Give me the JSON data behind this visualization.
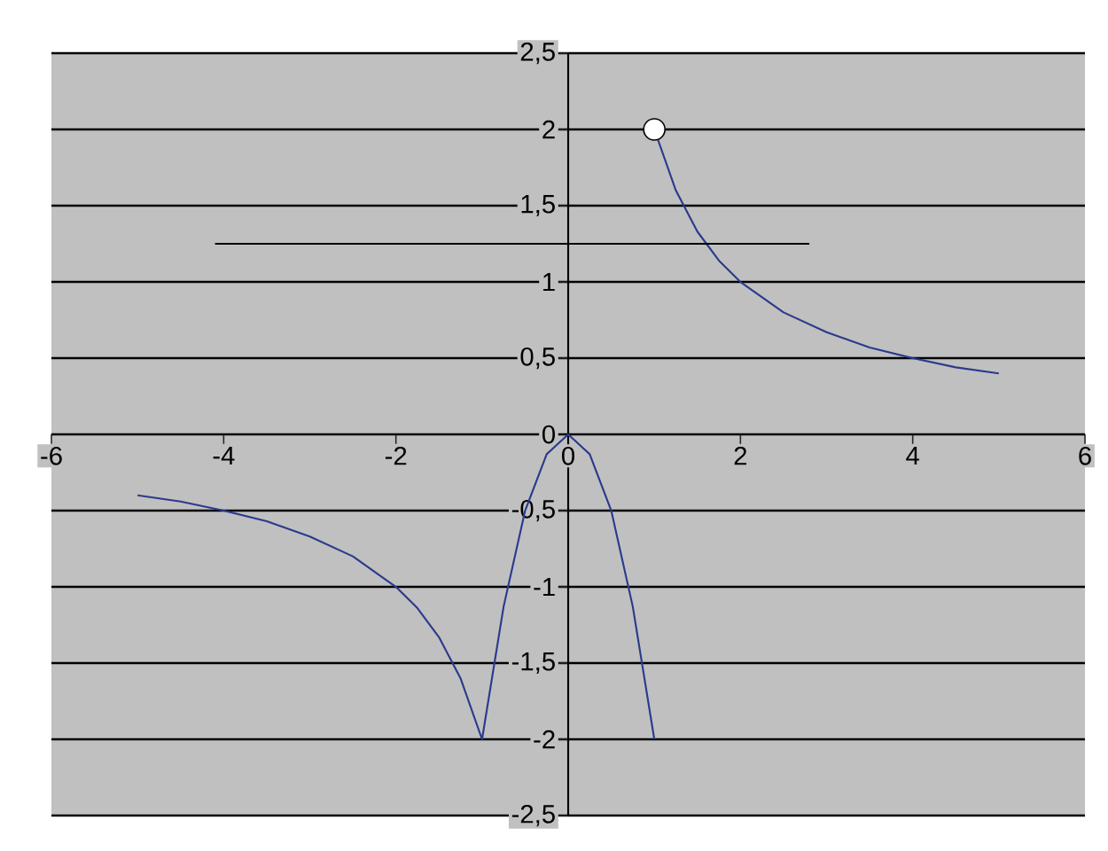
{
  "chart_data": {
    "type": "line",
    "xlim": [
      -6,
      6
    ],
    "ylim": [
      -2.5,
      2.5
    ],
    "xticks": [
      -6,
      -4,
      -2,
      0,
      2,
      4,
      6
    ],
    "yticks": [
      {
        "value": -2.5,
        "label": "-2,5"
      },
      -2,
      {
        "value": -1.5,
        "label": "-1,5"
      },
      -1,
      {
        "value": -0.5,
        "label": "-0,5"
      },
      0,
      {
        "value": 0.5,
        "label": "0,5"
      },
      1,
      {
        "value": 1.5,
        "label": "1,5"
      },
      2,
      {
        "value": 2.5,
        "label": "2,5"
      }
    ],
    "grid": "y",
    "series": [
      {
        "color": "#2b3a8c",
        "x": [
          -5,
          -4.5,
          -4,
          -3.5,
          -3,
          -2.5,
          -2,
          -1.75,
          -1.5,
          -1.25,
          -1,
          -0.75,
          -0.5,
          -0.25,
          0,
          0.25,
          0.5,
          0.75,
          1
        ],
        "values": [
          -0.4,
          -0.44,
          -0.5,
          -0.57,
          -0.67,
          -0.8,
          -1,
          -1.14,
          -1.33,
          -1.6,
          -2,
          -1.13,
          -0.5,
          -0.13,
          0,
          -0.13,
          -0.5,
          -1.13,
          -2
        ]
      },
      {
        "color": "#2b3a8c",
        "x": [
          1,
          1.25,
          1.5,
          1.75,
          2,
          2.5,
          3,
          3.5,
          4,
          4.5,
          5
        ],
        "values": [
          2,
          1.6,
          1.33,
          1.14,
          1,
          0.8,
          0.67,
          0.57,
          0.5,
          0.44,
          0.4
        ]
      },
      {
        "color": "#000000",
        "x": [
          -4.1,
          2.8
        ],
        "values": [
          1.25,
          1.25
        ]
      },
      {
        "type": "scatter",
        "marker": "circle",
        "color": "#ffffff",
        "x": [
          1
        ],
        "values": [
          2
        ]
      }
    ]
  }
}
